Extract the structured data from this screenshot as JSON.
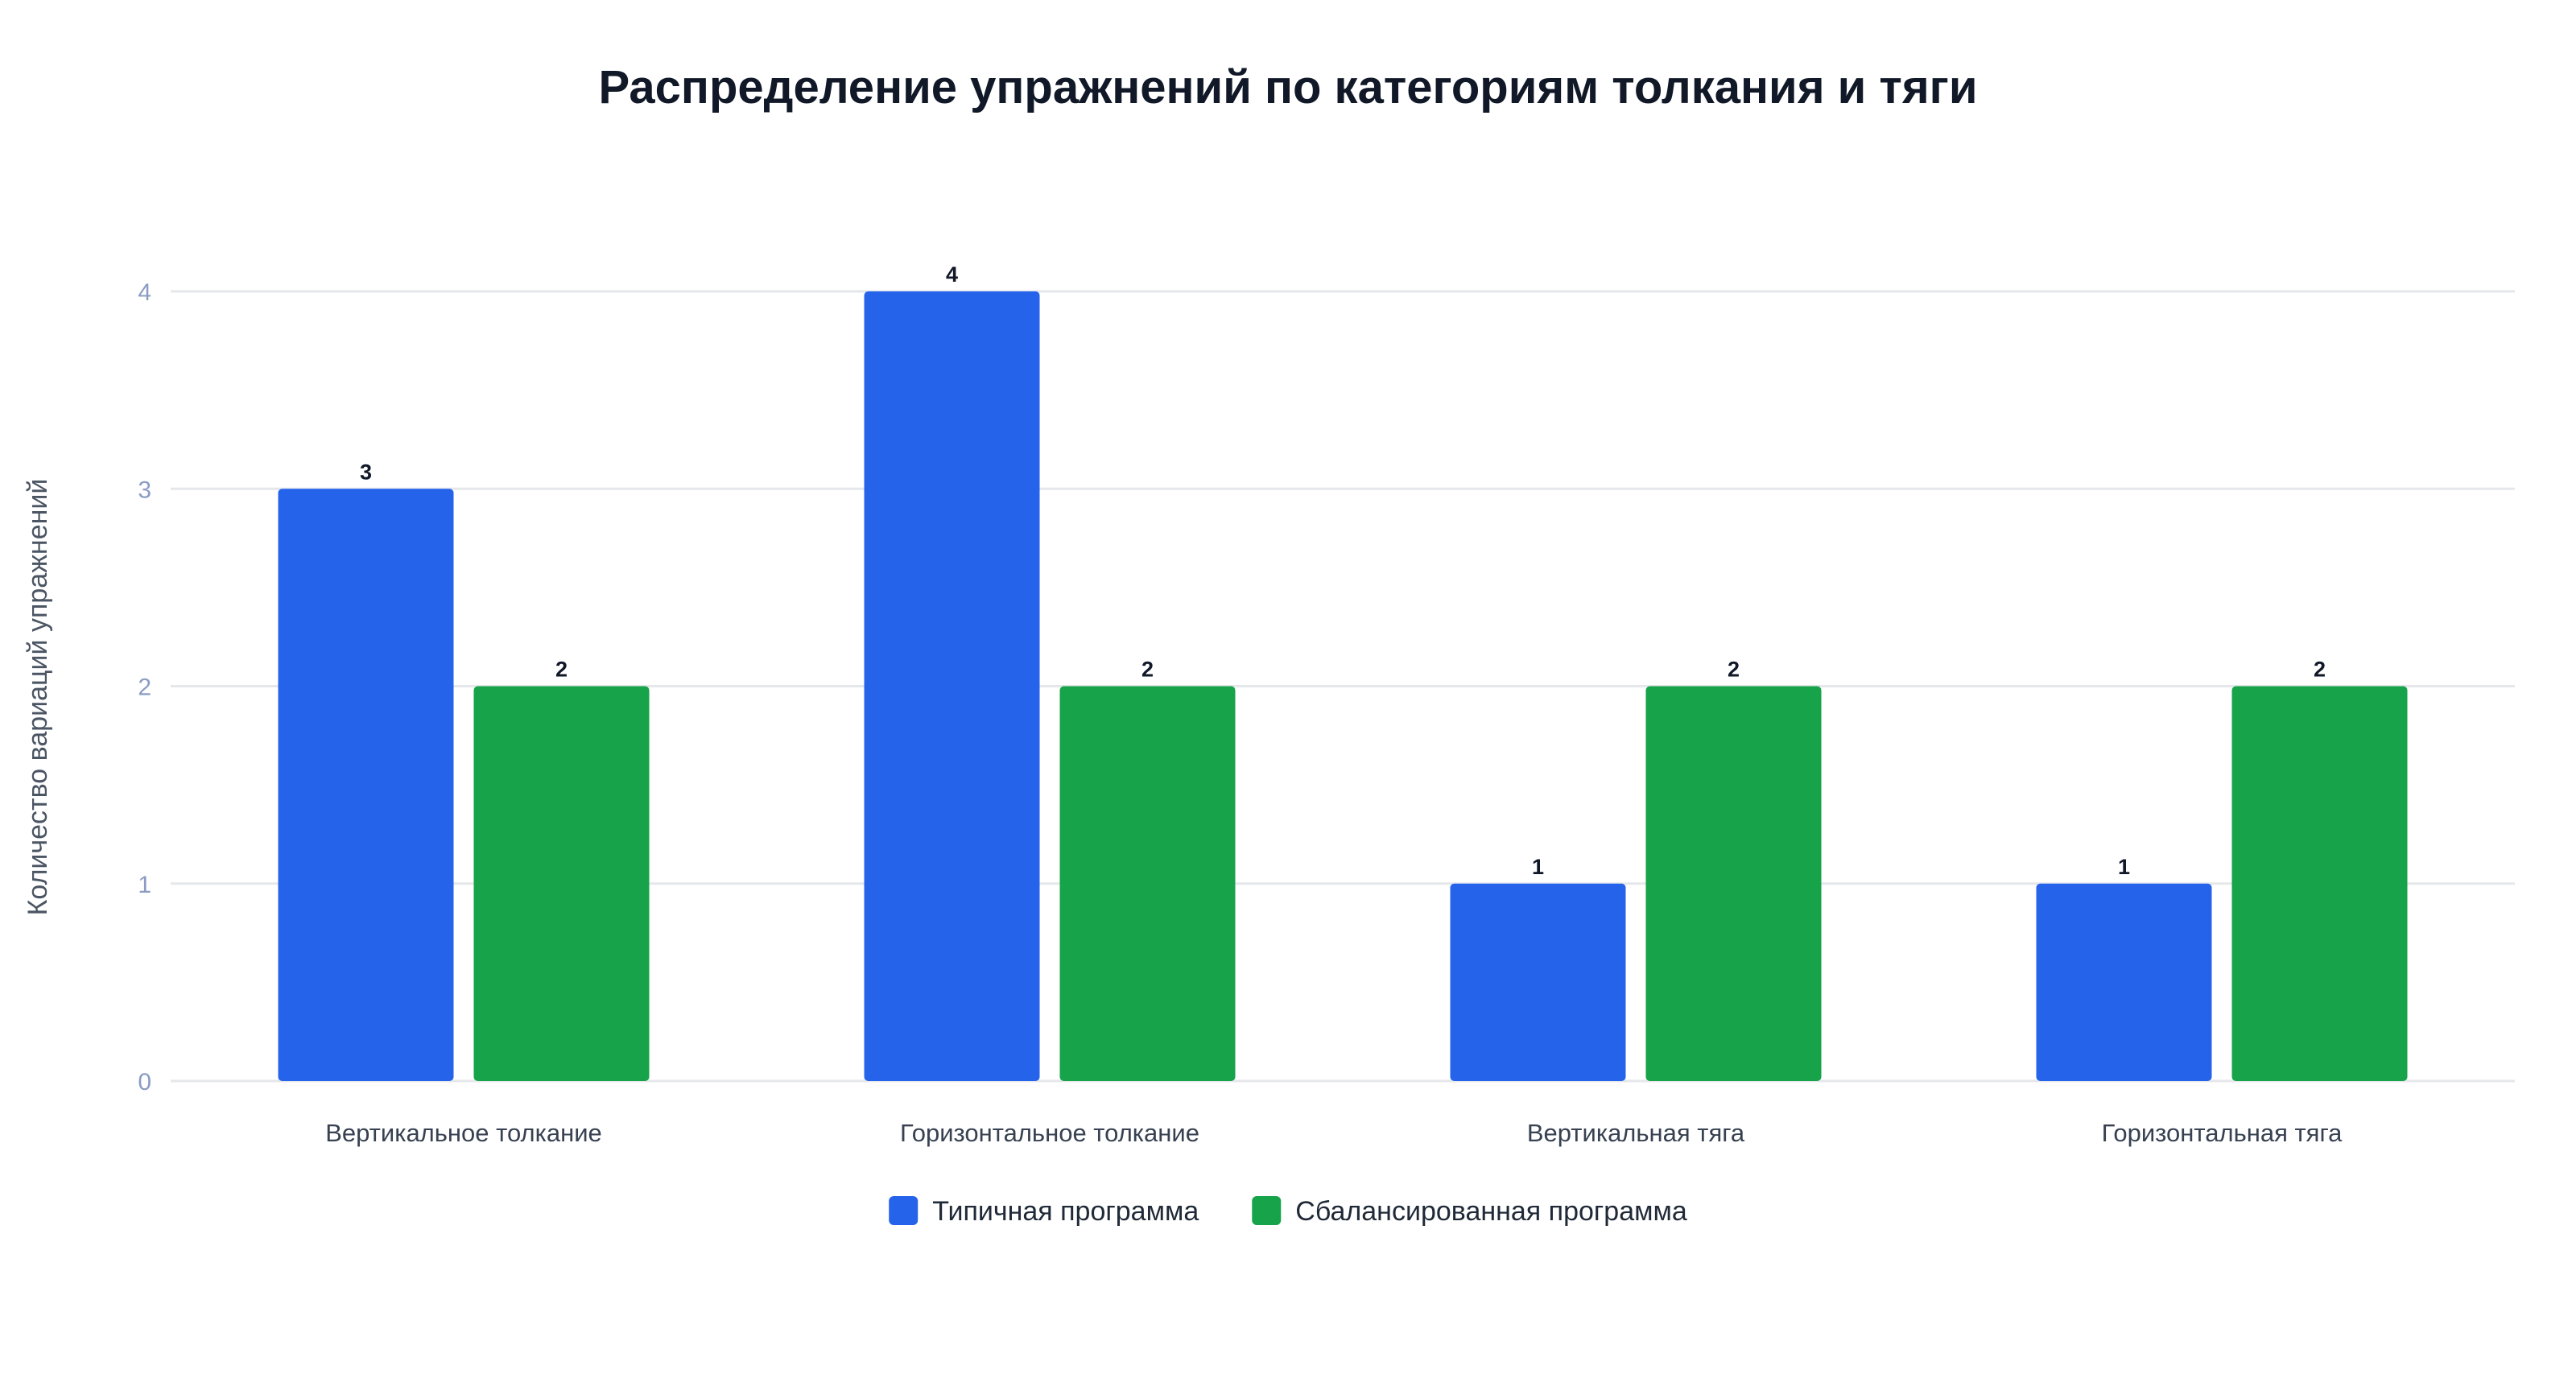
{
  "chart_data": {
    "type": "bar",
    "title": "Распределение упражнений по категориям толкания и тяги",
    "xlabel": "",
    "ylabel": "Количество вариаций упражнений",
    "categories": [
      "Вертикальное толкание",
      "Горизонтальное толкание",
      "Вертикальная тяга",
      "Горизонтальная тяга"
    ],
    "series": [
      {
        "name": "Типичная программа",
        "color": "#2563eb",
        "values": [
          3,
          4,
          1,
          1
        ]
      },
      {
        "name": "Сбалансированная программа",
        "color": "#16a34a",
        "values": [
          2,
          2,
          2,
          2
        ]
      }
    ],
    "ylim": [
      0,
      4
    ],
    "yticks": [
      0,
      1,
      2,
      3,
      4
    ],
    "grid": true,
    "data_labels": true,
    "legend_position": "bottom-center"
  }
}
